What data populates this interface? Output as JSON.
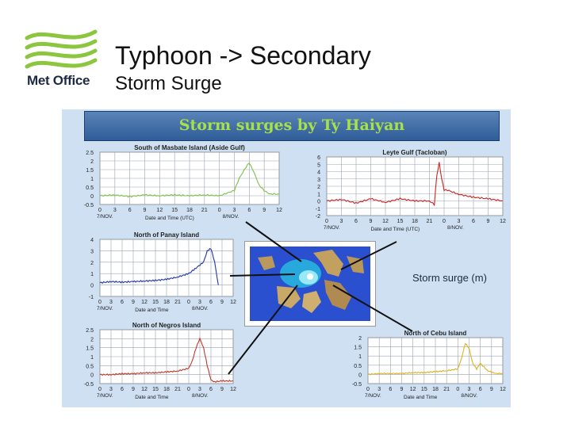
{
  "header": {
    "logo_text": "Met Office",
    "title": "Typhoon -> Secondary",
    "subtitle": "Storm Surge"
  },
  "figure": {
    "banner": "Storm surges by Ty Haiyan",
    "map_caption": "Storm surge (m)"
  },
  "colors": {
    "logo_green": "#8cc63f",
    "banner_text": "#a6e04a",
    "banner_bg": "#3a67a3",
    "slide_bg": "#cfe0f2"
  },
  "chart_data": [
    {
      "id": "masbate",
      "type": "line",
      "title": "South of Masbate Island (Aside Gulf)",
      "xlabel": "Date and Time (UTC)",
      "x_ticks": [
        "0",
        "3",
        "6",
        "9",
        "12",
        "15",
        "18",
        "21",
        "0",
        "3",
        "6",
        "9",
        "12"
      ],
      "date_labels": [
        "7/NOV.",
        "8/NOV."
      ],
      "y_ticks": [
        "2.5",
        "2",
        "1.5",
        "1",
        "0.5",
        "0",
        "-0.5"
      ],
      "ylim": [
        -0.5,
        2.5
      ],
      "series_color": "#7ec04a",
      "x": [
        0,
        3,
        6,
        9,
        12,
        15,
        18,
        21,
        24,
        27,
        28,
        29,
        30,
        31,
        32,
        33,
        34,
        36
      ],
      "y": [
        0.0,
        0.05,
        -0.05,
        0.05,
        0.0,
        0.05,
        0.0,
        0.05,
        0.0,
        0.3,
        1.0,
        1.5,
        1.9,
        1.3,
        0.6,
        0.3,
        0.1,
        0.1
      ]
    },
    {
      "id": "leyte",
      "type": "line",
      "title": "Leyte Gulf (Tacloban)",
      "xlabel": "Date and Time (UTC)",
      "x_ticks": [
        "0",
        "3",
        "6",
        "9",
        "12",
        "15",
        "18",
        "21",
        "0",
        "3",
        "6",
        "9",
        "12"
      ],
      "date_labels": [
        "7/NOV.",
        "8/NOV."
      ],
      "y_ticks": [
        "6",
        "5",
        "4",
        "3",
        "2",
        "1",
        "0",
        "-1",
        "-2"
      ],
      "ylim": [
        -2,
        6
      ],
      "series_color": "#cc2222",
      "x": [
        0,
        3,
        6,
        9,
        12,
        15,
        18,
        21,
        22,
        22.5,
        23,
        23.5,
        24,
        25,
        27,
        30,
        33,
        36
      ],
      "y": [
        0.0,
        0.2,
        -0.3,
        0.3,
        -0.2,
        0.3,
        0.0,
        0.0,
        -0.5,
        3.5,
        5.2,
        3.0,
        1.5,
        1.4,
        0.9,
        0.5,
        0.3,
        0.0
      ]
    },
    {
      "id": "panay",
      "type": "line",
      "title": "North of Panay Island",
      "xlabel": "Date and Time",
      "x_ticks": [
        "0",
        "3",
        "6",
        "9",
        "12",
        "15",
        "18",
        "21",
        "0",
        "3",
        "6",
        "9",
        "12"
      ],
      "date_labels": [
        "7/NOV.",
        "8/NOV."
      ],
      "y_ticks": [
        "4",
        "3",
        "2",
        "1",
        "0",
        "-1"
      ],
      "ylim": [
        -1,
        4
      ],
      "series_color": "#2233aa",
      "x": [
        0,
        3,
        6,
        9,
        12,
        15,
        18,
        21,
        24,
        26,
        28,
        29,
        30,
        31,
        32
      ],
      "y": [
        0.2,
        0.3,
        0.25,
        0.3,
        0.35,
        0.4,
        0.5,
        0.7,
        1.0,
        1.5,
        2.0,
        3.0,
        3.2,
        2.0,
        0.0
      ]
    },
    {
      "id": "negros",
      "type": "line",
      "title": "North of Negros Island",
      "xlabel": "Date and Time",
      "x_ticks": [
        "0",
        "3",
        "6",
        "9",
        "12",
        "15",
        "18",
        "21",
        "0",
        "3",
        "6",
        "9",
        "12"
      ],
      "date_labels": [
        "7/NOV.",
        "8/NOV."
      ],
      "y_ticks": [
        "2.5",
        "2",
        "1.5",
        "1",
        "0.5",
        "0",
        "-0.5"
      ],
      "ylim": [
        -0.5,
        2.5
      ],
      "series_color": "#c0392b",
      "x": [
        0,
        3,
        6,
        9,
        12,
        15,
        18,
        21,
        24,
        25,
        26,
        27,
        28,
        29,
        30,
        31,
        33,
        36
      ],
      "y": [
        0.0,
        0.0,
        0.05,
        0.05,
        0.1,
        0.1,
        0.15,
        0.2,
        0.35,
        0.8,
        1.5,
        2.0,
        1.5,
        0.5,
        -0.3,
        -0.4,
        -0.35,
        -0.35
      ]
    },
    {
      "id": "cebu",
      "type": "line",
      "title": "North of Cebu Island",
      "xlabel": "Date and Time",
      "x_ticks": [
        "0",
        "3",
        "6",
        "9",
        "12",
        "15",
        "18",
        "21",
        "0",
        "3",
        "6",
        "9",
        "12"
      ],
      "date_labels": [
        "7/NOV.",
        "8/NOV."
      ],
      "y_ticks": [
        "2",
        "1.5",
        "1",
        "0.5",
        "0",
        "-0.5"
      ],
      "ylim": [
        -0.5,
        2
      ],
      "series_color": "#e0b020",
      "x": [
        0,
        3,
        6,
        9,
        12,
        15,
        18,
        21,
        24,
        25,
        26,
        27,
        28,
        29,
        30,
        32,
        34,
        36
      ],
      "y": [
        0.0,
        0.05,
        0.05,
        0.05,
        0.1,
        0.1,
        0.15,
        0.2,
        0.3,
        0.9,
        1.7,
        1.4,
        0.6,
        0.3,
        0.6,
        0.2,
        0.05,
        0.05
      ]
    }
  ]
}
